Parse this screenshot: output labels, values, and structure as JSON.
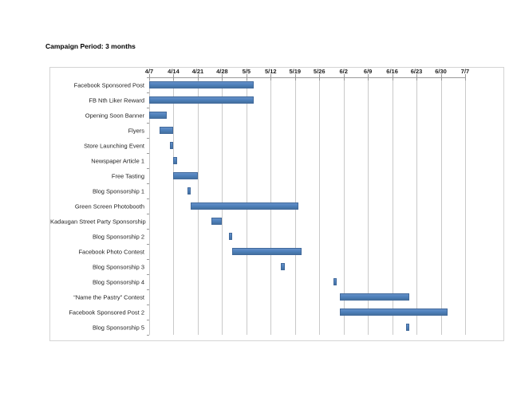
{
  "page": {
    "title": "Campaign Period: 3 months"
  },
  "chart_data": {
    "type": "bar",
    "subtype": "gantt",
    "orientation": "horizontal",
    "title": "Campaign Period: 3 months",
    "legend": false,
    "grid": true,
    "axis": {
      "position": "top",
      "start": "4/7",
      "end": "7/7",
      "interval_days": 7,
      "ticks": [
        "4/7",
        "4/14",
        "4/21",
        "4/28",
        "5/5",
        "5/12",
        "5/19",
        "5/26",
        "6/2",
        "6/9",
        "6/16",
        "6/23",
        "6/30",
        "7/7"
      ]
    },
    "tasks": [
      {
        "label": "Facebook Sponsored Post",
        "start": "4/7",
        "end": "5/7"
      },
      {
        "label": "FB Nth Liker Reward",
        "start": "4/7",
        "end": "5/7"
      },
      {
        "label": "Opening Soon Banner",
        "start": "4/7",
        "end": "4/12"
      },
      {
        "label": "Flyers",
        "start": "4/10",
        "end": "4/14"
      },
      {
        "label": "Store Launching Event",
        "start": "4/13",
        "end": "4/14"
      },
      {
        "label": "Newspaper Article 1",
        "start": "4/14",
        "end": "4/15"
      },
      {
        "label": "Free Tasting",
        "start": "4/14",
        "end": "4/21"
      },
      {
        "label": "Blog Sponsorship 1",
        "start": "4/18",
        "end": "4/19"
      },
      {
        "label": "Green Screen Photobooth",
        "start": "4/19",
        "end": "5/20"
      },
      {
        "label": "Kadaugan Street Party Sponsorship",
        "start": "4/25",
        "end": "4/28"
      },
      {
        "label": "Blog Sponsorship 2",
        "start": "4/30",
        "end": "5/1"
      },
      {
        "label": "Facebook Photo Contest",
        "start": "5/1",
        "end": "5/21"
      },
      {
        "label": "Blog Sponsorship 3",
        "start": "5/15",
        "end": "5/16"
      },
      {
        "label": "Blog Sponsorship 4",
        "start": "5/30",
        "end": "5/31"
      },
      {
        "label": "“Name the Pastry” Contest",
        "start": "6/1",
        "end": "6/21"
      },
      {
        "label": "Facebook Sponsored Post 2",
        "start": "6/1",
        "end": "7/2"
      },
      {
        "label": "Blog Sponsorship 5",
        "start": "6/20",
        "end": "6/21"
      }
    ],
    "colors": {
      "bar_fill": "#4f81bd",
      "bar_fill_light": "#6591c6",
      "bar_fill_dark": "#44719f",
      "bar_border": "#41699b",
      "gridline": "#c9c9c9",
      "axis": "#9a9a9a",
      "text": "#1f1f1f",
      "chart_border": "#d4d4d4",
      "background": "#ffffff"
    }
  }
}
